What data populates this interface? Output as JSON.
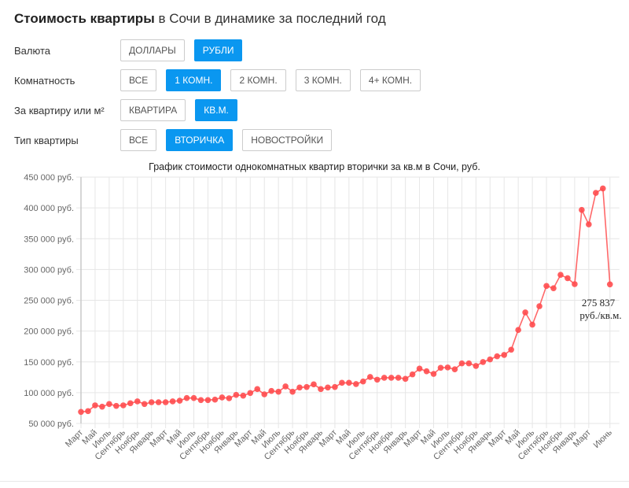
{
  "header": {
    "title_bold": "Стоимость квартиры",
    "title_rest": " в Сочи в динамике за последний год"
  },
  "filters": [
    {
      "label": "Валюта",
      "options": [
        {
          "text": "ДОЛЛАРЫ",
          "active": false
        },
        {
          "text": "РУБЛИ",
          "active": true
        }
      ]
    },
    {
      "label": "Комнатность",
      "options": [
        {
          "text": "ВСЕ",
          "active": false
        },
        {
          "text": "1 КОМН.",
          "active": true
        },
        {
          "text": "2 КОМН.",
          "active": false
        },
        {
          "text": "3 КОМН.",
          "active": false
        },
        {
          "text": "4+ КОМН.",
          "active": false
        }
      ]
    },
    {
      "label": "За квартиру или м²",
      "options": [
        {
          "text": "КВАРТИРА",
          "active": false
        },
        {
          "text": "КВ.М.",
          "active": true
        }
      ]
    },
    {
      "label": "Тип квартиры",
      "options": [
        {
          "text": "ВСЕ",
          "active": false
        },
        {
          "text": "ВТОРИЧКА",
          "active": true
        },
        {
          "text": "НОВОСТРОЙКИ",
          "active": false
        }
      ]
    }
  ],
  "colors": {
    "accent": "#0a97f0",
    "line": "#ff4d4f",
    "grid": "#e6e6e6"
  },
  "chart_data": {
    "type": "line",
    "title": "График стоимости однокомнатных квартир вторички за кв.м в Сочи, руб.",
    "xlabel": "",
    "ylabel": "",
    "ylim": [
      50000,
      450000
    ],
    "y_ticks": [
      50000,
      100000,
      150000,
      200000,
      250000,
      300000,
      350000,
      400000,
      450000
    ],
    "y_tick_labels": [
      "50 000 руб.",
      "100 000 руб.",
      "150 000 руб.",
      "200 000 руб.",
      "250 000 руб.",
      "300 000 руб.",
      "350 000 руб.",
      "400 000 руб.",
      "450 000 руб."
    ],
    "grid": true,
    "legend": "none",
    "x_tick_labels": [
      "Март",
      "Май",
      "Июль",
      "Сентябрь",
      "Ноябрь",
      "Январь",
      "Март",
      "Май",
      "Июль",
      "Сентябрь",
      "Ноябрь",
      "Январь",
      "Март",
      "Май",
      "Июль",
      "Сентябрь",
      "Ноябрь",
      "Январь",
      "Март",
      "Май",
      "Июль",
      "Сентябрь",
      "Ноябрь",
      "Январь",
      "Март",
      "Май",
      "Июль",
      "Сентябрь",
      "Ноябрь",
      "Январь",
      "Март",
      "Май",
      "Июль",
      "Сентябрь",
      "Ноябрь",
      "Январь",
      "Март",
      "Июнь"
    ],
    "x_tick_index": [
      0,
      2,
      4,
      6,
      8,
      10,
      12,
      14,
      16,
      18,
      20,
      22,
      24,
      26,
      28,
      30,
      32,
      34,
      36,
      38,
      40,
      42,
      44,
      46,
      48,
      50,
      52,
      54,
      56,
      58,
      60,
      62,
      64,
      66,
      68,
      70,
      72,
      75
    ],
    "series": [
      {
        "name": "1 комн., вторичка, руб./кв.м",
        "values": [
          68800,
          70000,
          79400,
          77200,
          81600,
          78500,
          79400,
          82800,
          85800,
          81600,
          84500,
          84500,
          84500,
          85800,
          87000,
          91300,
          91300,
          88000,
          88000,
          88800,
          92200,
          90900,
          96400,
          95100,
          99500,
          105800,
          97300,
          102800,
          101500,
          110100,
          101500,
          108400,
          109200,
          113500,
          105800,
          108400,
          109200,
          116000,
          116000,
          114000,
          118200,
          125500,
          121100,
          124200,
          124200,
          124200,
          122400,
          129700,
          139000,
          134800,
          130500,
          140400,
          140900,
          137900,
          147600,
          147600,
          143400,
          149800,
          154000,
          159100,
          161300,
          169800,
          201800,
          230300,
          210400,
          240400,
          273300,
          269600,
          291300,
          285800,
          276200,
          396700,
          373300,
          424400,
          431600,
          275837
        ]
      }
    ],
    "annotation": {
      "line1": "275 837",
      "line2": "руб./кв.м."
    }
  }
}
